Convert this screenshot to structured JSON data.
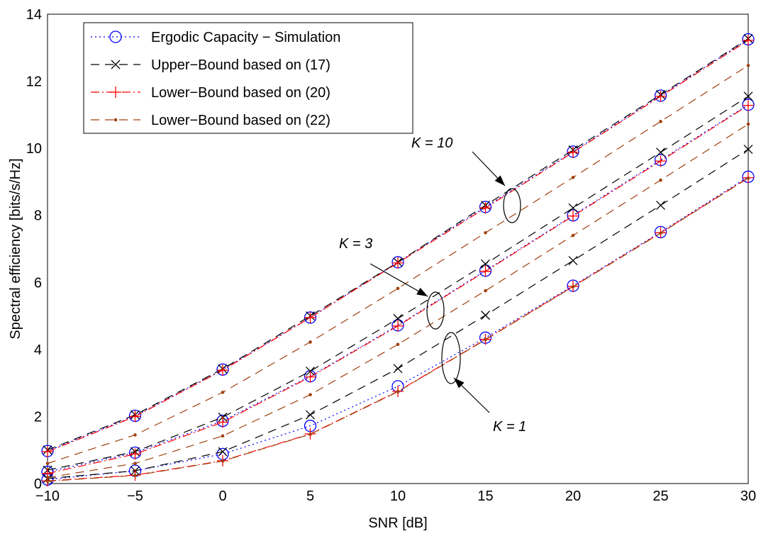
{
  "chart_data": {
    "type": "line",
    "x_label": "SNR [dB]",
    "y_label": "Spectral efficiency [bits/s/Hz]",
    "x": [
      -10,
      -5,
      0,
      5,
      10,
      15,
      20,
      25,
      30
    ],
    "xlim": [
      -10,
      30
    ],
    "ylim": [
      0,
      14
    ],
    "xticks": [
      {
        "value": -10,
        "label": "−10"
      },
      {
        "value": -5,
        "label": "−5"
      },
      0,
      5,
      10,
      15,
      20,
      25,
      30
    ],
    "yticks": [
      0,
      2,
      4,
      6,
      8,
      10,
      12,
      14
    ],
    "grid": true,
    "legend": "upper left",
    "series": [
      {
        "name": "Ergodic Capacity − Simulation",
        "color": "#0000ff",
        "dash": "2 4",
        "marker": "circle",
        "curves": [
          [
            0.97,
            2.02,
            3.4,
            4.95,
            6.6,
            8.25,
            9.9,
            11.57,
            13.25
          ],
          [
            0.35,
            0.92,
            1.87,
            3.2,
            4.72,
            6.35,
            8.0,
            9.65,
            11.3
          ],
          [
            0.12,
            0.38,
            0.88,
            1.72,
            2.9,
            4.35,
            5.9,
            7.5,
            9.15
          ]
        ]
      },
      {
        "name": "Upper−Bound based on (17)",
        "color": "#000000",
        "dash": "12 8",
        "marker": "x",
        "curves": [
          [
            1.0,
            2.05,
            3.42,
            5.0,
            6.6,
            8.3,
            9.95,
            11.6,
            13.27
          ],
          [
            0.4,
            0.95,
            1.98,
            3.35,
            4.92,
            6.55,
            8.22,
            9.88,
            11.55
          ],
          [
            0.15,
            0.38,
            0.95,
            2.05,
            3.43,
            5.02,
            6.65,
            8.3,
            9.97
          ]
        ]
      },
      {
        "name": "Lower−Bound based on (20)",
        "color": "#ff0000",
        "dash": "12 4 2 4",
        "marker": "plus",
        "curves": [
          [
            0.95,
            2.0,
            3.38,
            4.95,
            6.58,
            8.22,
            9.88,
            11.55,
            13.22
          ],
          [
            0.3,
            0.88,
            1.83,
            3.18,
            4.7,
            6.33,
            7.98,
            9.62,
            11.28
          ],
          [
            0.08,
            0.25,
            0.68,
            1.48,
            2.75,
            4.3,
            5.88,
            7.48,
            9.12
          ]
        ]
      },
      {
        "name": "Lower−Bound based on (22)",
        "color": "#a0410d",
        "dash": "12 8",
        "marker": "dot",
        "curves": [
          [
            0.6,
            1.45,
            2.72,
            4.22,
            5.82,
            7.48,
            9.13,
            10.8,
            12.47
          ],
          [
            0.18,
            0.6,
            1.42,
            2.65,
            4.15,
            5.75,
            7.4,
            9.05,
            10.72
          ],
          [
            0.07,
            0.24,
            0.67,
            1.47,
            2.74,
            4.29,
            5.87,
            7.47,
            9.11
          ]
        ]
      }
    ],
    "annotations": [
      "K = 10",
      "K = 3",
      "K = 1"
    ]
  }
}
